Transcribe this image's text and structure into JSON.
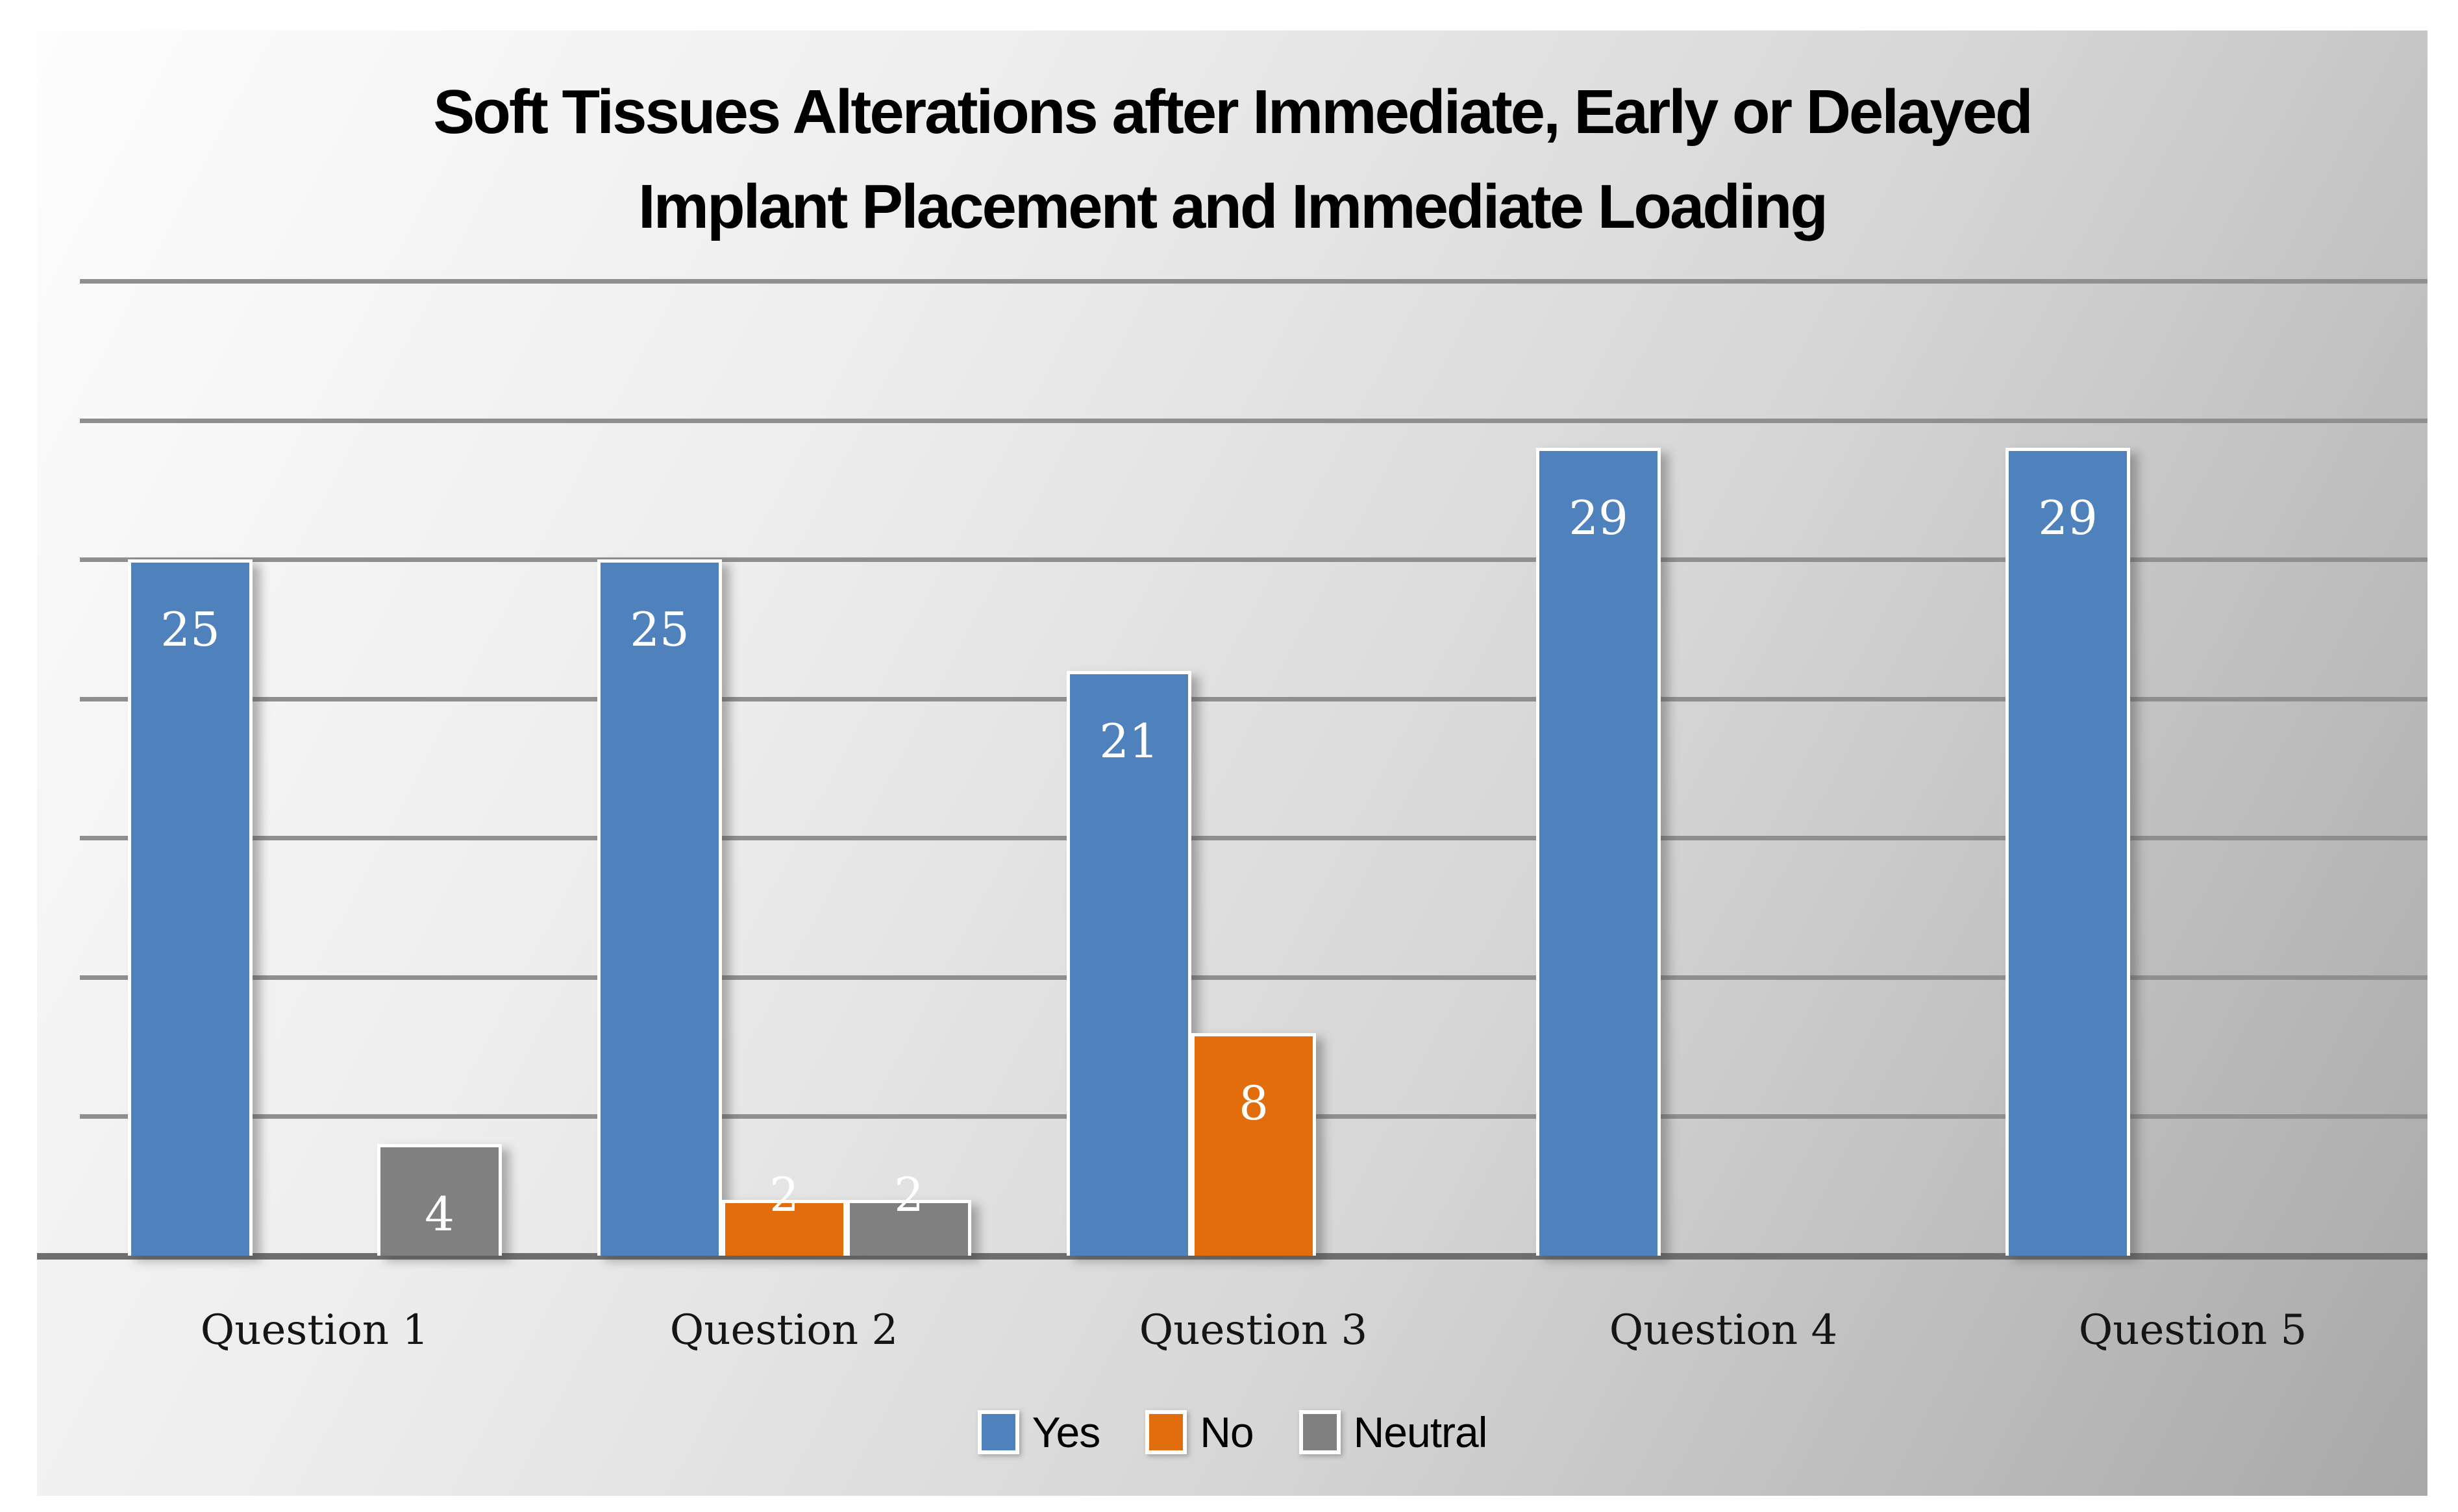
{
  "title": {
    "line1": "Soft Tissues Alterations after Immediate, Early or Delayed",
    "line2": "Implant Placement and Immediate Loading"
  },
  "chart_data": {
    "type": "bar",
    "title": "Soft Tissues Alterations after Immediate, Early or Delayed Implant Placement and Immediate Loading",
    "categories": [
      "Question 1",
      "Question 2",
      "Question 3",
      "Question 4",
      "Question 5"
    ],
    "series": [
      {
        "name": "Yes",
        "color": "#4F81BD",
        "values": [
          25,
          25,
          21,
          29,
          29
        ]
      },
      {
        "name": "No",
        "color": "#E26D0C",
        "values": [
          0,
          2,
          8,
          0,
          0
        ]
      },
      {
        "name": "Neutral",
        "color": "#808080",
        "values": [
          4,
          2,
          0,
          0,
          0
        ]
      }
    ],
    "xlabel": "",
    "ylabel": "",
    "ylim": [
      0,
      35
    ],
    "gridline_interval": 5,
    "grid": true,
    "y_tick_labels_shown": false,
    "value_labels": "white numbers shown on every non-zero bar",
    "legend_position": "bottom"
  },
  "legend": {
    "items": [
      {
        "label": "Yes",
        "color": "#4F81BD"
      },
      {
        "label": "No",
        "color": "#E26D0C"
      },
      {
        "label": "Neutral",
        "color": "#808080"
      }
    ]
  },
  "colors": {
    "page_bg": "#FFFFFF",
    "panel_gradient_light": "#FDFDFD",
    "panel_gradient_dark": "#A8A8A8",
    "gridline": "#8F8F8F",
    "axis_line": "#6E6E6E",
    "bar_border": "#FFFFFF",
    "value_label_text": "#FFFFFF",
    "category_label_text": "#151515",
    "title_text": "#000000",
    "legend_text": "#000000"
  }
}
